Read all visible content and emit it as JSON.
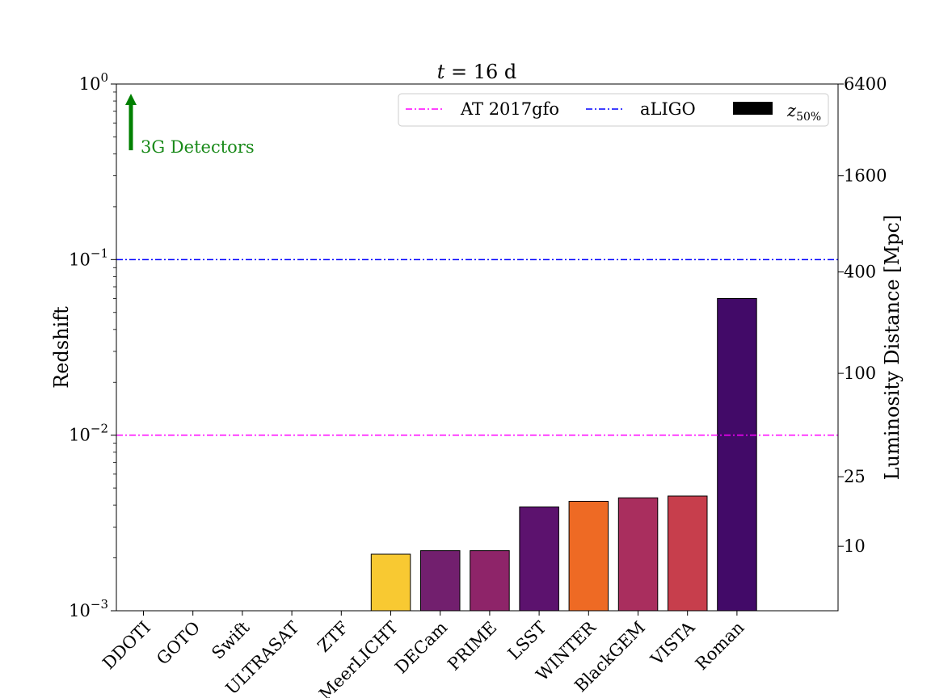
{
  "chart_data": {
    "type": "bar",
    "title_prefix": "t",
    "title_suffix": " = 16 d",
    "ylabel": "Redshift",
    "y2label": "Luminosity Distance [Mpc]",
    "yscale": "log",
    "ylim": [
      0.001,
      1
    ],
    "y_ticks": [
      {
        "value": 0.001,
        "base": "10",
        "exp": "−3"
      },
      {
        "value": 0.01,
        "base": "10",
        "exp": "−2"
      },
      {
        "value": 0.1,
        "base": "10",
        "exp": "−1"
      },
      {
        "value": 1,
        "base": "10",
        "exp": "0"
      }
    ],
    "y2_ticks": [
      {
        "label": "6400",
        "z": 1.0
      },
      {
        "label": "1600",
        "z": 0.3
      },
      {
        "label": "400",
        "z": 0.085
      },
      {
        "label": "100",
        "z": 0.0225
      },
      {
        "label": "25",
        "z": 0.0058
      },
      {
        "label": "10",
        "z": 0.00233
      }
    ],
    "categories": [
      "DDOTI",
      "GOTO",
      "Swift",
      "ULTRASAT",
      "ZTF",
      "MeerLICHT",
      "DECam",
      "PRIME",
      "LSST",
      "WINTER",
      "BlackGEM",
      "VISTA",
      "Roman"
    ],
    "values": [
      null,
      null,
      null,
      null,
      null,
      0.0021,
      0.0022,
      0.0022,
      0.0039,
      0.0042,
      0.0044,
      0.0045,
      0.06
    ],
    "bar_colors": [
      "#000000",
      "#000000",
      "#000000",
      "#000000",
      "#000000",
      "#f8c932",
      "#721f6e",
      "#8e2469",
      "#5c126e",
      "#ee6a24",
      "#a92e5e",
      "#c73e4c",
      "#420a68"
    ],
    "hlines": [
      {
        "name": "AT 2017gfo",
        "value": 0.01,
        "color": "#ff00ff"
      },
      {
        "name": "aLIGO",
        "value": 0.1,
        "color": "#0000ff"
      }
    ],
    "legend": {
      "placement": "top-right",
      "entries": [
        "AT 2017gfo",
        "aLIGO"
      ],
      "bar_entry_base": "z",
      "bar_entry_sub": "50%"
    },
    "annotation": {
      "text": "3G Detectors",
      "color": "#008000"
    },
    "grid": false
  }
}
